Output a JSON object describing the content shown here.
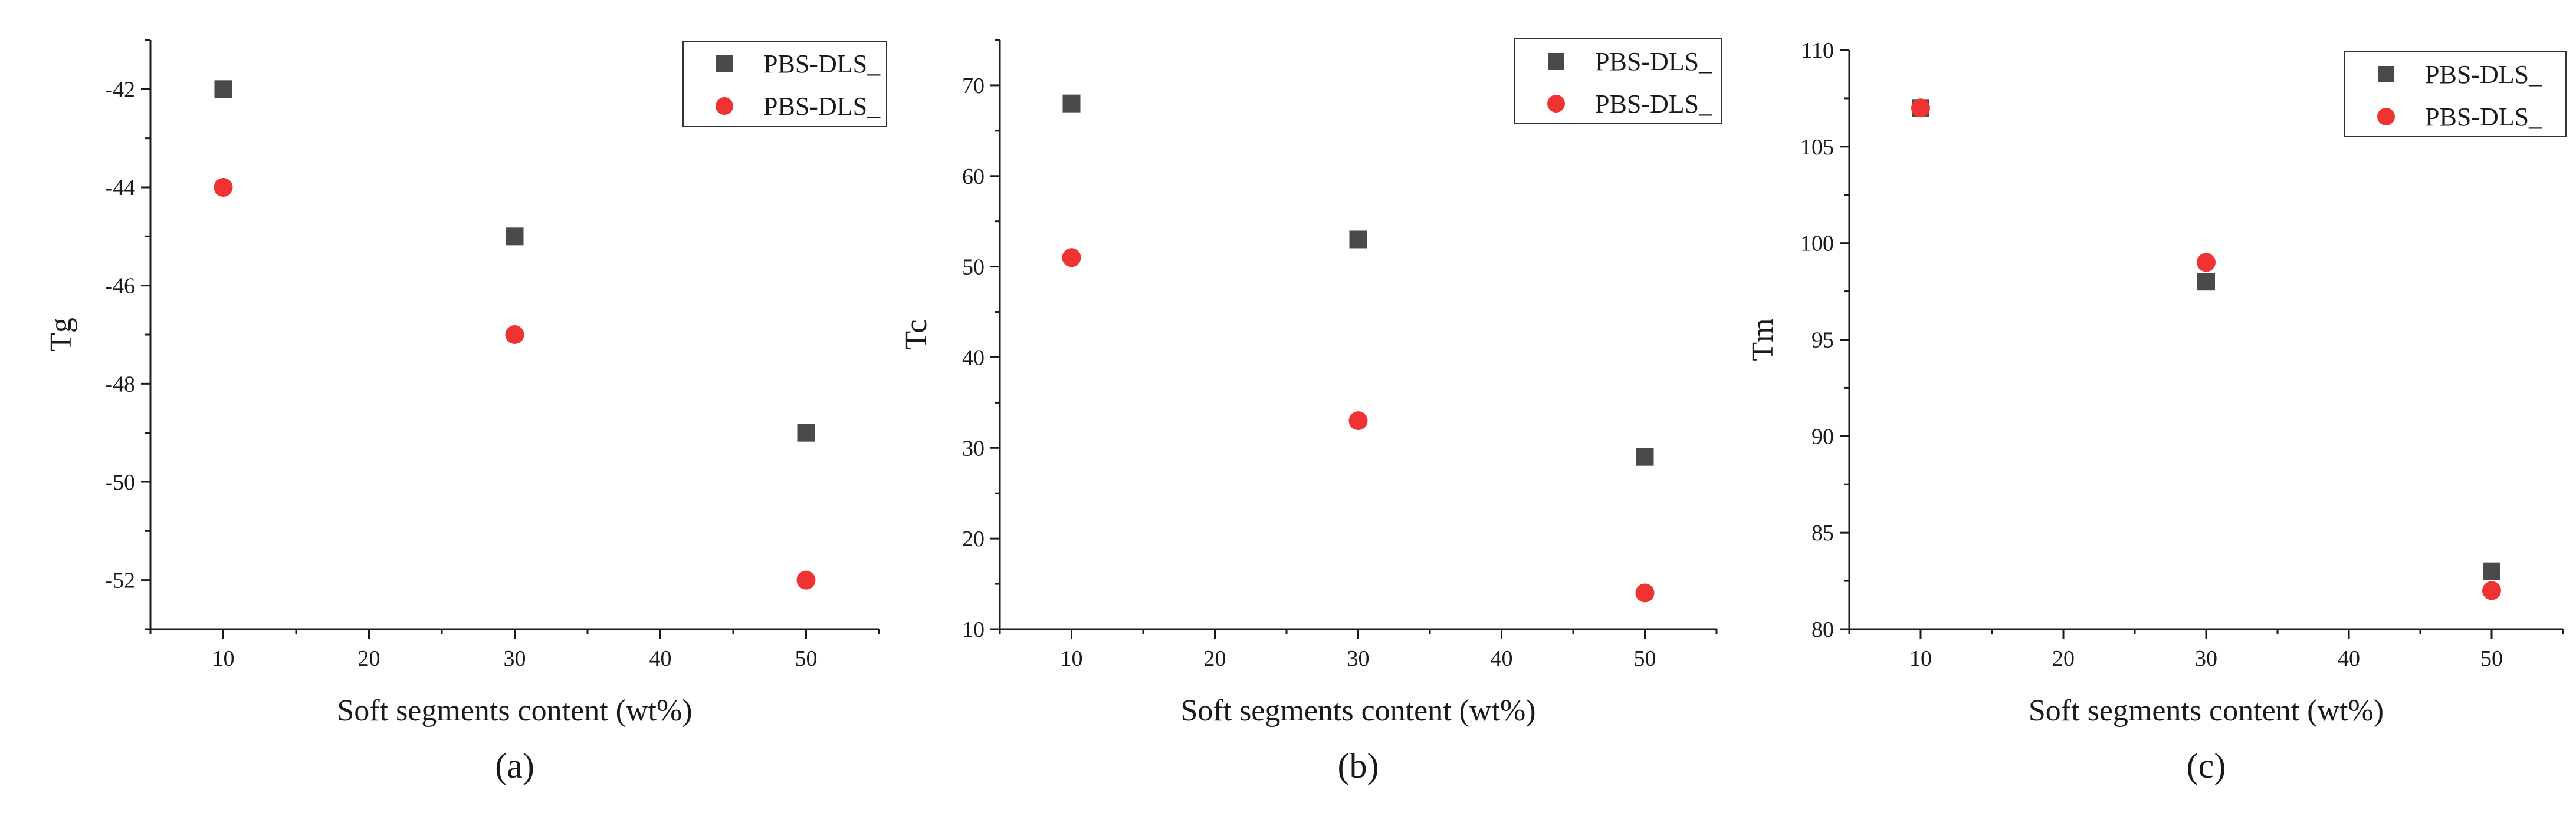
{
  "colors": {
    "series_square": "#4a4a4a",
    "series_circle": "#ef3333",
    "axis": "#1a1a1a"
  },
  "chart_data": [
    {
      "type": "scatter",
      "panel_label": "(a)",
      "xlabel": "Soft segments content (wt%)",
      "ylabel": "Tg",
      "x": [
        10,
        30,
        50
      ],
      "xlim": [
        5,
        55
      ],
      "xticks": [
        10,
        20,
        30,
        40,
        50
      ],
      "xtick_labels": [
        "10",
        "20",
        "30",
        "40",
        "50"
      ],
      "ylim": [
        -53,
        -41
      ],
      "yticks": [
        -52,
        -50,
        -48,
        -46,
        -44,
        -42
      ],
      "ytick_labels": [
        "-52",
        "-50",
        "-48",
        "-46",
        "-44",
        "-42"
      ],
      "legend_position": "top-right",
      "grid": false,
      "series": [
        {
          "name": "PBS-DLS_",
          "marker": "square",
          "values": [
            -42,
            -45,
            -49
          ]
        },
        {
          "name": "PBS-DLS_",
          "marker": "circle",
          "values": [
            -44,
            -47,
            -52
          ]
        }
      ]
    },
    {
      "type": "scatter",
      "panel_label": "(b)",
      "xlabel": "Soft segments content (wt%)",
      "ylabel": "Tc",
      "x": [
        10,
        30,
        50
      ],
      "xlim": [
        5,
        55
      ],
      "xticks": [
        10,
        20,
        30,
        40,
        50
      ],
      "xtick_labels": [
        "10",
        "20",
        "30",
        "40",
        "50"
      ],
      "ylim": [
        10,
        75
      ],
      "yticks": [
        10,
        20,
        30,
        40,
        50,
        60,
        70
      ],
      "ytick_labels": [
        "10",
        "20",
        "30",
        "40",
        "50",
        "60",
        "70"
      ],
      "legend_position": "top-right",
      "grid": false,
      "series": [
        {
          "name": "PBS-DLS_",
          "marker": "square",
          "values": [
            68,
            53,
            29
          ]
        },
        {
          "name": "PBS-DLS_",
          "marker": "circle",
          "values": [
            51,
            33,
            14
          ]
        }
      ]
    },
    {
      "type": "scatter",
      "panel_label": "(c)",
      "xlabel": "Soft segments content (wt%)",
      "ylabel": "Tm",
      "x": [
        10,
        30,
        50
      ],
      "xlim": [
        5,
        55
      ],
      "xticks": [
        10,
        20,
        30,
        40,
        50
      ],
      "xtick_labels": [
        "10",
        "20",
        "30",
        "40",
        "50"
      ],
      "ylim": [
        80,
        110
      ],
      "yticks": [
        80,
        85,
        90,
        95,
        100,
        105,
        110
      ],
      "ytick_labels": [
        "80",
        "85",
        "90",
        "95",
        "100",
        "105",
        "110"
      ],
      "legend_position": "top-right",
      "grid": false,
      "series": [
        {
          "name": "PBS-DLS_",
          "marker": "square",
          "values": [
            107,
            98,
            83
          ]
        },
        {
          "name": "PBS-DLS_",
          "marker": "circle",
          "values": [
            107,
            99,
            82
          ]
        }
      ]
    }
  ]
}
